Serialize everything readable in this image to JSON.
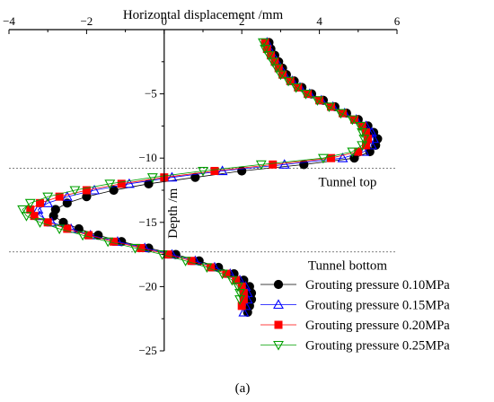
{
  "chart_data": {
    "type": "line",
    "xlabel": "Horizontal displacement /mm",
    "ylabel": "Depth /m",
    "xlim": [
      -4,
      6
    ],
    "ylim": [
      -25,
      0
    ],
    "x_ticks": [
      -4,
      -2,
      0,
      2,
      4,
      6
    ],
    "y_ticks": [
      -5,
      -10,
      -15,
      -20,
      -25
    ],
    "x_tick_labels": [
      "−4",
      "−2",
      "0",
      "2",
      "4",
      "6"
    ],
    "y_tick_labels": [
      "−5",
      "−10",
      "−15",
      "−20",
      "−25"
    ],
    "grid": false,
    "legend_position": "bottom-right",
    "reference_lines": [
      {
        "depth": -10.8,
        "label": "Tunnel top"
      },
      {
        "depth": -17.3,
        "label": "Tunnel bottom"
      }
    ],
    "caption": "(a)",
    "series": [
      {
        "name": "Grouting pressure 0.10MPa",
        "marker": "circle",
        "color": "#000000",
        "points": [
          [
            2.7,
            -1
          ],
          [
            2.75,
            -1.5
          ],
          [
            2.85,
            -2
          ],
          [
            2.95,
            -2.5
          ],
          [
            3.05,
            -3
          ],
          [
            3.15,
            -3.5
          ],
          [
            3.35,
            -4
          ],
          [
            3.55,
            -4.5
          ],
          [
            3.8,
            -5
          ],
          [
            4.1,
            -5.5
          ],
          [
            4.4,
            -6
          ],
          [
            4.7,
            -6.5
          ],
          [
            5.0,
            -7
          ],
          [
            5.25,
            -7.5
          ],
          [
            5.4,
            -8
          ],
          [
            5.5,
            -8.5
          ],
          [
            5.45,
            -9
          ],
          [
            5.3,
            -9.5
          ],
          [
            4.9,
            -10
          ],
          [
            3.6,
            -10.5
          ],
          [
            2.0,
            -11
          ],
          [
            0.8,
            -11.5
          ],
          [
            -0.4,
            -12
          ],
          [
            -1.3,
            -12.5
          ],
          [
            -2.0,
            -13
          ],
          [
            -2.5,
            -13.5
          ],
          [
            -2.8,
            -14
          ],
          [
            -2.85,
            -14.5
          ],
          [
            -2.6,
            -15
          ],
          [
            -2.2,
            -15.5
          ],
          [
            -1.7,
            -16
          ],
          [
            -1.1,
            -16.5
          ],
          [
            -0.4,
            -17
          ],
          [
            0.3,
            -17.5
          ],
          [
            0.9,
            -18
          ],
          [
            1.4,
            -18.5
          ],
          [
            1.8,
            -19
          ],
          [
            2.05,
            -19.5
          ],
          [
            2.2,
            -20
          ],
          [
            2.25,
            -20.5
          ],
          [
            2.25,
            -21
          ],
          [
            2.2,
            -21.5
          ],
          [
            2.15,
            -22
          ]
        ]
      },
      {
        "name": "Grouting pressure 0.15MPa",
        "marker": "triangle-up",
        "color": "#0000ff",
        "points": [
          [
            2.65,
            -1
          ],
          [
            2.7,
            -1.5
          ],
          [
            2.8,
            -2
          ],
          [
            2.9,
            -2.5
          ],
          [
            3.0,
            -3
          ],
          [
            3.1,
            -3.5
          ],
          [
            3.3,
            -4
          ],
          [
            3.5,
            -4.5
          ],
          [
            3.75,
            -5
          ],
          [
            4.05,
            -5.5
          ],
          [
            4.35,
            -6
          ],
          [
            4.65,
            -6.5
          ],
          [
            4.95,
            -7
          ],
          [
            5.2,
            -7.5
          ],
          [
            5.35,
            -8
          ],
          [
            5.4,
            -8.5
          ],
          [
            5.35,
            -9
          ],
          [
            5.15,
            -9.5
          ],
          [
            4.6,
            -10
          ],
          [
            3.1,
            -10.5
          ],
          [
            1.5,
            -11
          ],
          [
            0.2,
            -11.5
          ],
          [
            -0.9,
            -12
          ],
          [
            -1.8,
            -12.5
          ],
          [
            -2.5,
            -13
          ],
          [
            -3.0,
            -13.5
          ],
          [
            -3.25,
            -14
          ],
          [
            -3.2,
            -14.5
          ],
          [
            -2.9,
            -15
          ],
          [
            -2.4,
            -15.5
          ],
          [
            -1.9,
            -16
          ],
          [
            -1.2,
            -16.5
          ],
          [
            -0.5,
            -17
          ],
          [
            0.2,
            -17.5
          ],
          [
            0.8,
            -18
          ],
          [
            1.3,
            -18.5
          ],
          [
            1.7,
            -19
          ],
          [
            1.95,
            -19.5
          ],
          [
            2.1,
            -20
          ],
          [
            2.15,
            -20.5
          ],
          [
            2.15,
            -21
          ],
          [
            2.1,
            -21.5
          ],
          [
            2.05,
            -22
          ]
        ]
      },
      {
        "name": "Grouting pressure 0.20MPa",
        "marker": "square",
        "color": "#ff0000",
        "points": [
          [
            2.6,
            -1
          ],
          [
            2.65,
            -1.5
          ],
          [
            2.75,
            -2
          ],
          [
            2.85,
            -2.5
          ],
          [
            2.95,
            -3
          ],
          [
            3.05,
            -3.5
          ],
          [
            3.25,
            -4
          ],
          [
            3.45,
            -4.5
          ],
          [
            3.7,
            -5
          ],
          [
            4.0,
            -5.5
          ],
          [
            4.3,
            -6
          ],
          [
            4.6,
            -6.5
          ],
          [
            4.9,
            -7
          ],
          [
            5.1,
            -7.5
          ],
          [
            5.2,
            -8
          ],
          [
            5.25,
            -8.5
          ],
          [
            5.2,
            -9
          ],
          [
            5.0,
            -9.5
          ],
          [
            4.3,
            -10
          ],
          [
            2.8,
            -10.5
          ],
          [
            1.3,
            -11
          ],
          [
            0.0,
            -11.5
          ],
          [
            -1.1,
            -12
          ],
          [
            -2.0,
            -12.5
          ],
          [
            -2.7,
            -13
          ],
          [
            -3.2,
            -13.5
          ],
          [
            -3.45,
            -14
          ],
          [
            -3.35,
            -14.5
          ],
          [
            -3.0,
            -15
          ],
          [
            -2.5,
            -15.5
          ],
          [
            -1.95,
            -16
          ],
          [
            -1.3,
            -16.5
          ],
          [
            -0.6,
            -17
          ],
          [
            0.1,
            -17.5
          ],
          [
            0.7,
            -18
          ],
          [
            1.2,
            -18.5
          ],
          [
            1.6,
            -19
          ],
          [
            1.85,
            -19.5
          ],
          [
            2.0,
            -20
          ],
          [
            2.05,
            -20.5
          ],
          [
            2.05,
            -21
          ],
          [
            2.0,
            -21.5
          ]
        ]
      },
      {
        "name": "Grouting pressure 0.25MPa",
        "marker": "triangle-down",
        "color": "#00a000",
        "points": [
          [
            2.55,
            -1
          ],
          [
            2.6,
            -1.5
          ],
          [
            2.7,
            -2
          ],
          [
            2.8,
            -2.5
          ],
          [
            2.9,
            -3
          ],
          [
            3.0,
            -3.5
          ],
          [
            3.2,
            -4
          ],
          [
            3.4,
            -4.5
          ],
          [
            3.65,
            -5
          ],
          [
            3.95,
            -5.5
          ],
          [
            4.25,
            -6
          ],
          [
            4.55,
            -6.5
          ],
          [
            4.85,
            -7
          ],
          [
            5.05,
            -7.5
          ],
          [
            5.1,
            -8
          ],
          [
            5.15,
            -8.5
          ],
          [
            5.1,
            -9
          ],
          [
            4.85,
            -9.5
          ],
          [
            4.1,
            -10
          ],
          [
            2.5,
            -10.5
          ],
          [
            1.0,
            -11
          ],
          [
            -0.3,
            -11.5
          ],
          [
            -1.4,
            -12
          ],
          [
            -2.3,
            -12.5
          ],
          [
            -3.0,
            -13
          ],
          [
            -3.45,
            -13.5
          ],
          [
            -3.65,
            -14
          ],
          [
            -3.55,
            -14.5
          ],
          [
            -3.2,
            -15
          ],
          [
            -2.7,
            -15.5
          ],
          [
            -2.1,
            -16
          ],
          [
            -1.45,
            -16.5
          ],
          [
            -0.75,
            -17
          ],
          [
            -0.05,
            -17.5
          ],
          [
            0.55,
            -18
          ],
          [
            1.1,
            -18.5
          ],
          [
            1.5,
            -19
          ],
          [
            1.75,
            -19.5
          ],
          [
            1.9,
            -20
          ],
          [
            1.95,
            -20.5
          ],
          [
            1.95,
            -21
          ]
        ]
      }
    ]
  }
}
